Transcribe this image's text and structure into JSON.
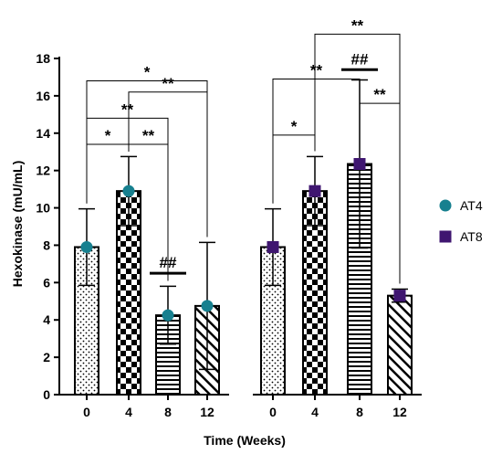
{
  "chart_data": {
    "type": "bar",
    "ylabel": "Hexokinase (mU/mL)",
    "xlabel": "Time (Weeks)",
    "ylim": [
      0,
      18
    ],
    "yticks": [
      0,
      2,
      4,
      6,
      8,
      10,
      12,
      14,
      16,
      18
    ],
    "categories": [
      "0",
      "4",
      "8",
      "12"
    ],
    "legend": {
      "placement": "right"
    },
    "series": [
      {
        "name": "AT4",
        "marker": "circle",
        "color": "#17808f",
        "values": [
          7.9,
          10.9,
          4.25,
          4.75
        ],
        "error_upper": [
          9.95,
          12.75,
          5.8,
          8.15
        ],
        "error_lower": [
          5.85,
          9.05,
          2.7,
          1.35
        ],
        "patterns": [
          "dots",
          "checker",
          "hlines",
          "diag"
        ]
      },
      {
        "name": "AT8",
        "marker": "square",
        "color": "#3f1670",
        "values": [
          7.9,
          10.9,
          12.35,
          5.3
        ],
        "error_upper": [
          9.95,
          12.75,
          16.85,
          5.65
        ],
        "error_lower": [
          5.85,
          9.05,
          7.85,
          4.95
        ],
        "patterns": [
          "dots",
          "checker",
          "hlines",
          "diag"
        ]
      }
    ],
    "annotations": [
      {
        "series": 0,
        "from": 0,
        "to": 1,
        "y": 13.4,
        "label": "*"
      },
      {
        "series": 0,
        "from": 1,
        "to": 2,
        "y": 13.4,
        "label": "**"
      },
      {
        "series": 0,
        "from": 0,
        "to": 2,
        "y": 14.8,
        "label": "**"
      },
      {
        "series": 0,
        "from": 1,
        "to": 3,
        "y": 16.2,
        "label": "**"
      },
      {
        "series": 0,
        "from": 0,
        "to": 3,
        "y": 16.8,
        "label": "*"
      },
      {
        "series": 0,
        "bar": 2,
        "y": 6.5,
        "label": "##",
        "type": "line"
      },
      {
        "series": 1,
        "from": 0,
        "to": 1,
        "y": 13.9,
        "label": "*"
      },
      {
        "series": 1,
        "from": 0,
        "to": 2,
        "y": 16.9,
        "label": "**"
      },
      {
        "series": 1,
        "from": 2,
        "to": 3,
        "y": 15.6,
        "label": "**"
      },
      {
        "series": 1,
        "from": 1,
        "to": 3,
        "y": 19.3,
        "label": "**"
      },
      {
        "series": 1,
        "bar": 2,
        "y": 17.4,
        "label": "##",
        "type": "line"
      }
    ]
  }
}
